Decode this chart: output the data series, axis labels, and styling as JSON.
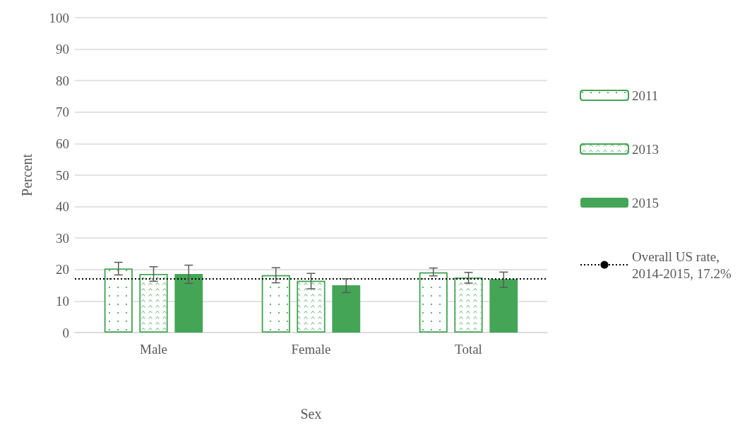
{
  "chart_data": {
    "type": "bar",
    "xlabel": "Sex",
    "ylabel": "Percent",
    "categories": [
      "Male",
      "Female",
      "Total"
    ],
    "series": [
      {
        "name": "2011",
        "color": "#45a557",
        "values": [
          20.3,
          18.2,
          19.1
        ],
        "errors": [
          [
            18.3,
            22.3
          ],
          [
            15.8,
            20.6
          ],
          [
            18.0,
            20.5
          ]
        ]
      },
      {
        "name": "2013",
        "color": "#45a557",
        "values": [
          18.6,
          16.4,
          17.5
        ],
        "errors": [
          [
            16.3,
            20.9
          ],
          [
            13.9,
            18.8
          ],
          [
            15.7,
            19.1
          ]
        ]
      },
      {
        "name": "2015",
        "color": "#45a557",
        "values": [
          18.6,
          15.0,
          17.0
        ],
        "errors": [
          [
            15.6,
            21.4
          ],
          [
            12.7,
            17.1
          ],
          [
            14.3,
            19.2
          ]
        ]
      }
    ],
    "ylim": [
      0,
      100
    ],
    "yticks": [
      0,
      10,
      20,
      30,
      40,
      50,
      60,
      70,
      80,
      90,
      100
    ],
    "ref_lines": [
      {
        "axis": "y",
        "value": 17.2,
        "label": "Overall US rate, 2014-2015, 17.2%",
        "color": "#000000",
        "line_style": "dotted"
      }
    ],
    "grid": "y",
    "legend": "right"
  }
}
